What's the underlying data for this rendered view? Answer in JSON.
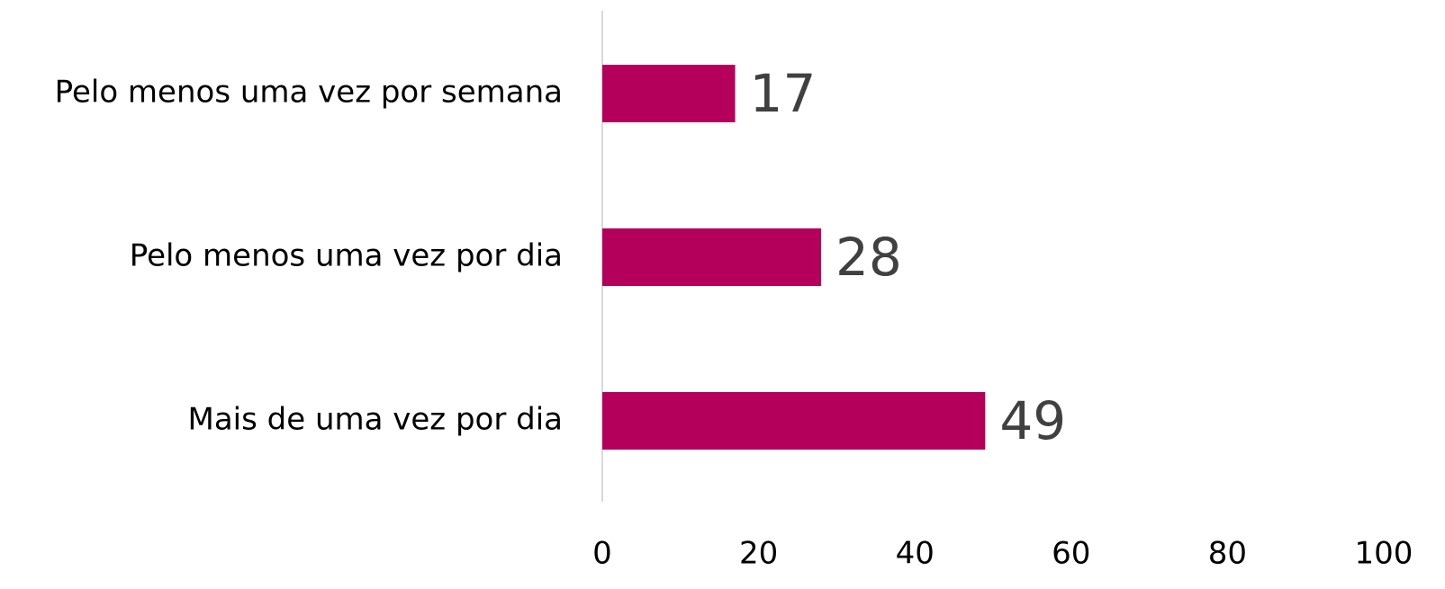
{
  "chart_data": {
    "type": "bar",
    "orientation": "horizontal",
    "categories": [
      "Pelo menos uma vez por semana",
      "Pelo menos uma vez por dia",
      "Mais de uma vez por dia"
    ],
    "values": [
      17,
      28,
      49
    ],
    "color": "#b5005b",
    "xlim": [
      0,
      100
    ],
    "xticks": [
      0,
      20,
      40,
      60,
      80,
      100
    ],
    "grid": false,
    "data_labels": true
  }
}
